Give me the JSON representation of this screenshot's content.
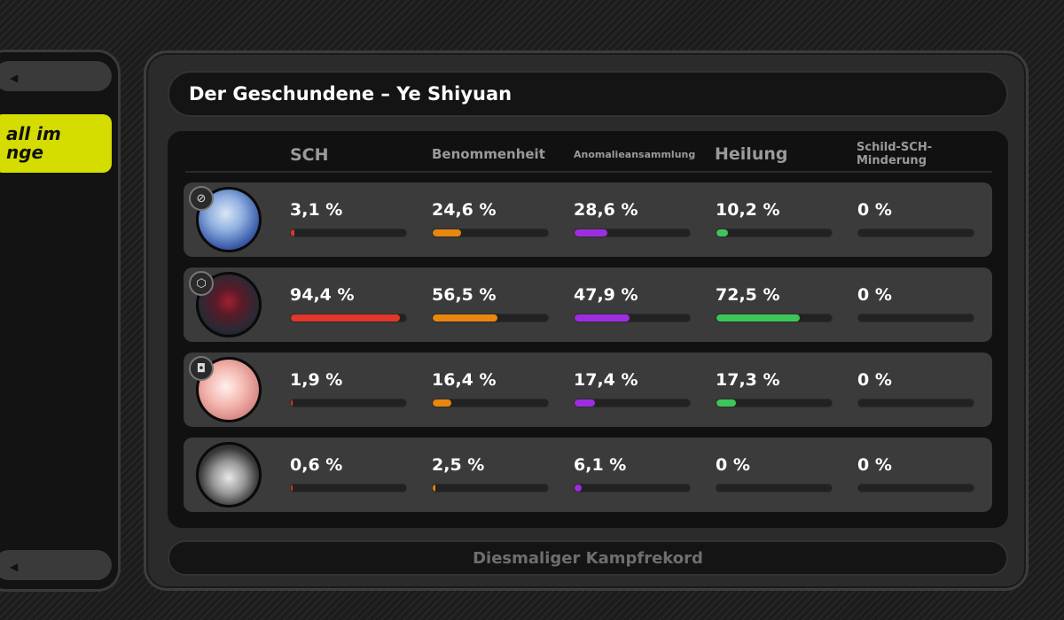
{
  "left_panel": {
    "highlight_lines": [
      "all im",
      "nge"
    ]
  },
  "title": "Der Geschundene – Ye Shiyuan",
  "columns": [
    "SCH",
    "Benommenheit",
    "Anomalieansammlung",
    "Heilung",
    "Schild-SCH-Minderung"
  ],
  "colors": {
    "sch": "#e0382a",
    "benommenheit": "#e8870e",
    "anomalie": "#9d2ee0",
    "heilung": "#3fc45a",
    "schild": "#5a5a5a"
  },
  "rows": [
    {
      "avatar": "blue-haired-agent-avatar",
      "role_icon": "attack-icon",
      "values": [
        "3,1 %",
        "24,6 %",
        "28,6 %",
        "10,2 %",
        "0 %"
      ],
      "levels": [
        3.1,
        24.6,
        28.6,
        10.2,
        0
      ]
    },
    {
      "avatar": "armored-robot-agent-avatar",
      "role_icon": "support-icon",
      "values": [
        "94,4 %",
        "56,5 %",
        "47,9 %",
        "72,5 %",
        "0 %"
      ],
      "levels": [
        94.4,
        56.5,
        47.9,
        72.5,
        0
      ]
    },
    {
      "avatar": "pink-haired-agent-avatar",
      "role_icon": "defense-icon",
      "values": [
        "1,9 %",
        "16,4 %",
        "17,4 %",
        "17,3 %",
        "0 %"
      ],
      "levels": [
        1.9,
        16.4,
        17.4,
        17.3,
        0
      ]
    },
    {
      "avatar": "bangboo-avatar",
      "role_icon": "",
      "values": [
        "0,6 %",
        "2,5 %",
        "6,1 %",
        "0 %",
        "0 %"
      ],
      "levels": [
        0.6,
        2.5,
        6.1,
        0,
        0
      ]
    }
  ],
  "footer_button": "Diesmaliger Kampfrekord"
}
